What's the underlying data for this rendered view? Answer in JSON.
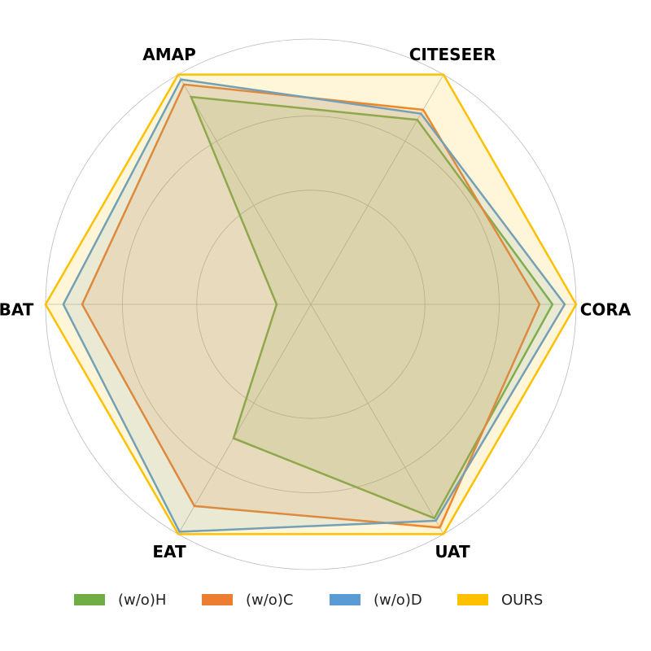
{
  "chart_data": {
    "type": "radar",
    "categories": [
      "CORA",
      "CITESEER",
      "AMAP",
      "BAT",
      "EAT",
      "UAT"
    ],
    "series": [
      {
        "name": "(w/o)H",
        "color": "#70ad47",
        "values": [
          0.911,
          0.803,
          0.903,
          0.129,
          0.583,
          0.931
        ]
      },
      {
        "name": "(w/o)C",
        "color": "#ed7d31",
        "values": [
          0.862,
          0.847,
          0.957,
          0.862,
          0.878,
          0.972
        ]
      },
      {
        "name": "(w/o)D",
        "color": "#5b9bd5",
        "values": [
          0.957,
          0.83,
          0.979,
          0.933,
          0.99,
          0.942
        ]
      },
      {
        "name": "OURS",
        "color": "#ffc000",
        "values": [
          1.0,
          1.0,
          1.0,
          1.0,
          1.0,
          1.0
        ]
      }
    ],
    "ylim": [
      0,
      1
    ],
    "yticks": [
      0.43,
      0.71,
      1.0
    ],
    "grid": true,
    "legend": "bottom"
  }
}
